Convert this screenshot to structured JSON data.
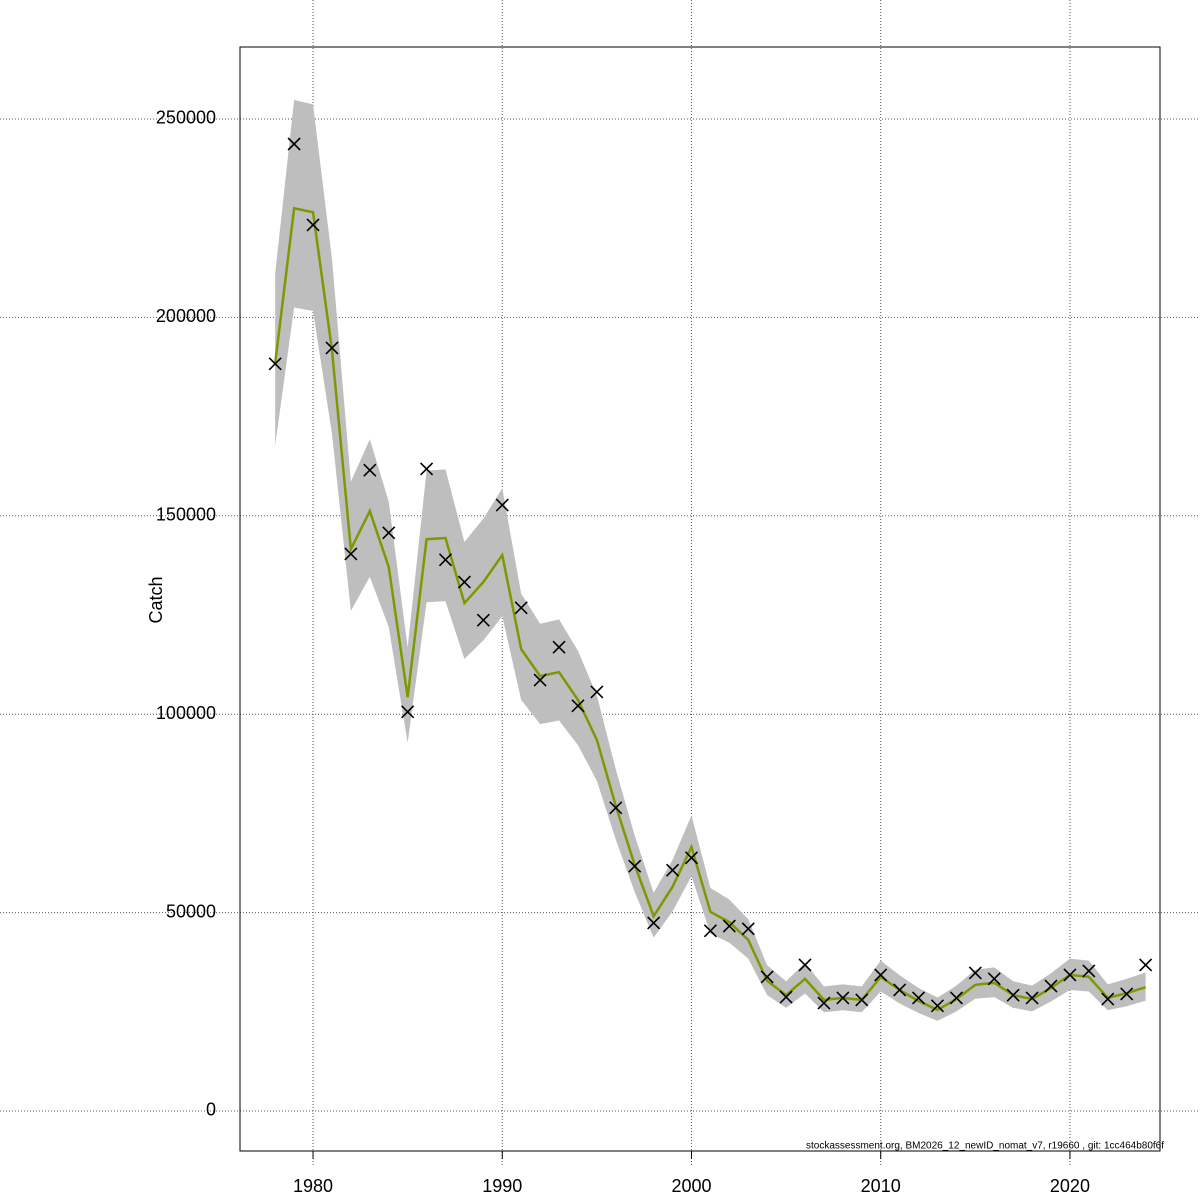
{
  "chart_data": {
    "type": "line",
    "y_label": "Catch",
    "footer": "stockassessment.org, BM2026_12_newID_nomat_v7, r19660 , git: 1cc464b80f6f",
    "x": [
      1978,
      1979,
      1980,
      1981,
      1982,
      1983,
      1984,
      1985,
      1986,
      1987,
      1988,
      1989,
      1990,
      1991,
      1992,
      1993,
      1994,
      1995,
      1996,
      1997,
      1998,
      1999,
      2000,
      2001,
      2002,
      2003,
      2004,
      2005,
      2006,
      2007,
      2008,
      2009,
      2010,
      2011,
      2012,
      2013,
      2014,
      2015,
      2016,
      2017,
      2018,
      2019,
      2020,
      2021,
      2022,
      2023,
      2024
    ],
    "band": {
      "color": "#bebebe",
      "upper": [
        211100,
        254800,
        253700,
        214800,
        158600,
        169300,
        153600,
        116800,
        161400,
        161700,
        143400,
        149300,
        156900,
        130400,
        122800,
        123900,
        116000,
        104700,
        86100,
        69400,
        55000,
        63300,
        74500,
        56200,
        53300,
        48300,
        36700,
        32700,
        37300,
        31400,
        31900,
        31400,
        37900,
        34200,
        31000,
        28600,
        31600,
        35600,
        36200,
        32700,
        31600,
        34700,
        38400,
        37900,
        31900,
        33300,
        34900
      ],
      "lower": [
        167800,
        202500,
        201600,
        170700,
        126000,
        134600,
        122000,
        92800,
        128200,
        128500,
        113900,
        118600,
        124700,
        103600,
        97500,
        98400,
        92200,
        83200,
        68400,
        55200,
        43700,
        50300,
        59200,
        44700,
        42400,
        38400,
        29200,
        26000,
        29600,
        24900,
        25400,
        24900,
        30100,
        27100,
        24700,
        22700,
        25100,
        28300,
        28700,
        26000,
        25100,
        27600,
        30500,
        30100,
        25400,
        26400,
        27800
      ]
    },
    "line": {
      "color": "#7a9a01",
      "values": [
        188500,
        227500,
        226500,
        191800,
        141600,
        151200,
        137100,
        104300,
        144100,
        144400,
        128000,
        133300,
        140100,
        116400,
        109600,
        110600,
        103600,
        93500,
        76900,
        62000,
        49100,
        56500,
        66500,
        50200,
        47600,
        43100,
        32800,
        29200,
        33300,
        28000,
        28500,
        28000,
        33800,
        30500,
        27700,
        25500,
        28200,
        31800,
        32300,
        29200,
        28200,
        31000,
        34300,
        33800,
        28500,
        29700,
        31200
      ]
    },
    "points": {
      "color": "#000000",
      "values": [
        188300,
        243700,
        223300,
        192300,
        140400,
        161500,
        145700,
        100600,
        161800,
        138900,
        133300,
        123700,
        152700,
        126800,
        108600,
        116900,
        102100,
        105600,
        76400,
        61700,
        47400,
        60700,
        63800,
        45400,
        46600,
        45900,
        33800,
        28700,
        36800,
        27200,
        28500,
        28000,
        34300,
        30500,
        28500,
        26500,
        28500,
        34800,
        33300,
        29200,
        28500,
        31500,
        34300,
        35300,
        28200,
        29500,
        36800
      ]
    },
    "xlim": [
      1976.14,
      2024.76
    ],
    "ylim": [
      -10081,
      268145
    ],
    "xticks": [
      1980,
      1990,
      2000,
      2010,
      2020
    ],
    "yticks": [
      0,
      50000,
      100000,
      150000,
      200000,
      250000
    ],
    "grid": true
  }
}
